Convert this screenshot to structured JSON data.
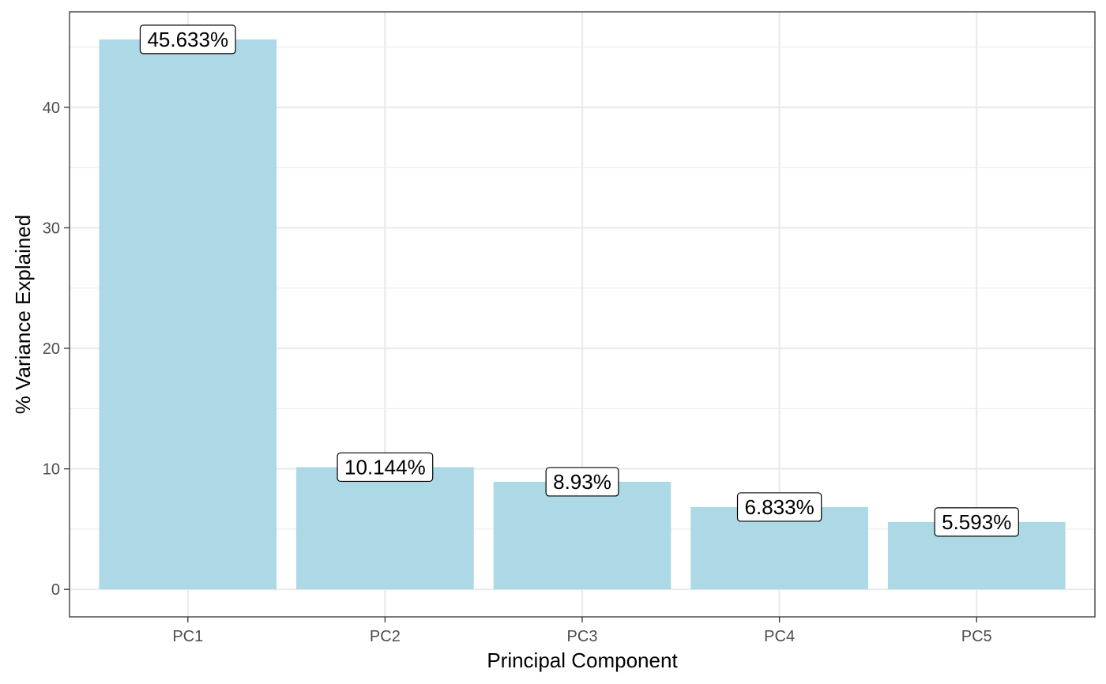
{
  "chart_data": {
    "type": "bar",
    "categories": [
      "PC1",
      "PC2",
      "PC3",
      "PC4",
      "PC5"
    ],
    "values": [
      45.633,
      10.144,
      8.93,
      6.833,
      5.593
    ],
    "data_labels": [
      "45.633%",
      "10.144%",
      "8.93%",
      "6.833%",
      "5.593%"
    ],
    "title": "",
    "xlabel": "Principal Component",
    "ylabel": "% Variance Explained",
    "ylim": [
      -2.28,
      47.92
    ],
    "yticks": [
      0,
      10,
      20,
      30,
      40
    ],
    "grid": true,
    "legend": "none",
    "colors": {
      "bar": "#add8e6",
      "grid": "#ebebeb",
      "panel_border": "#333333",
      "label_box_border": "#000000",
      "label_box_fill": "#ffffff"
    }
  }
}
